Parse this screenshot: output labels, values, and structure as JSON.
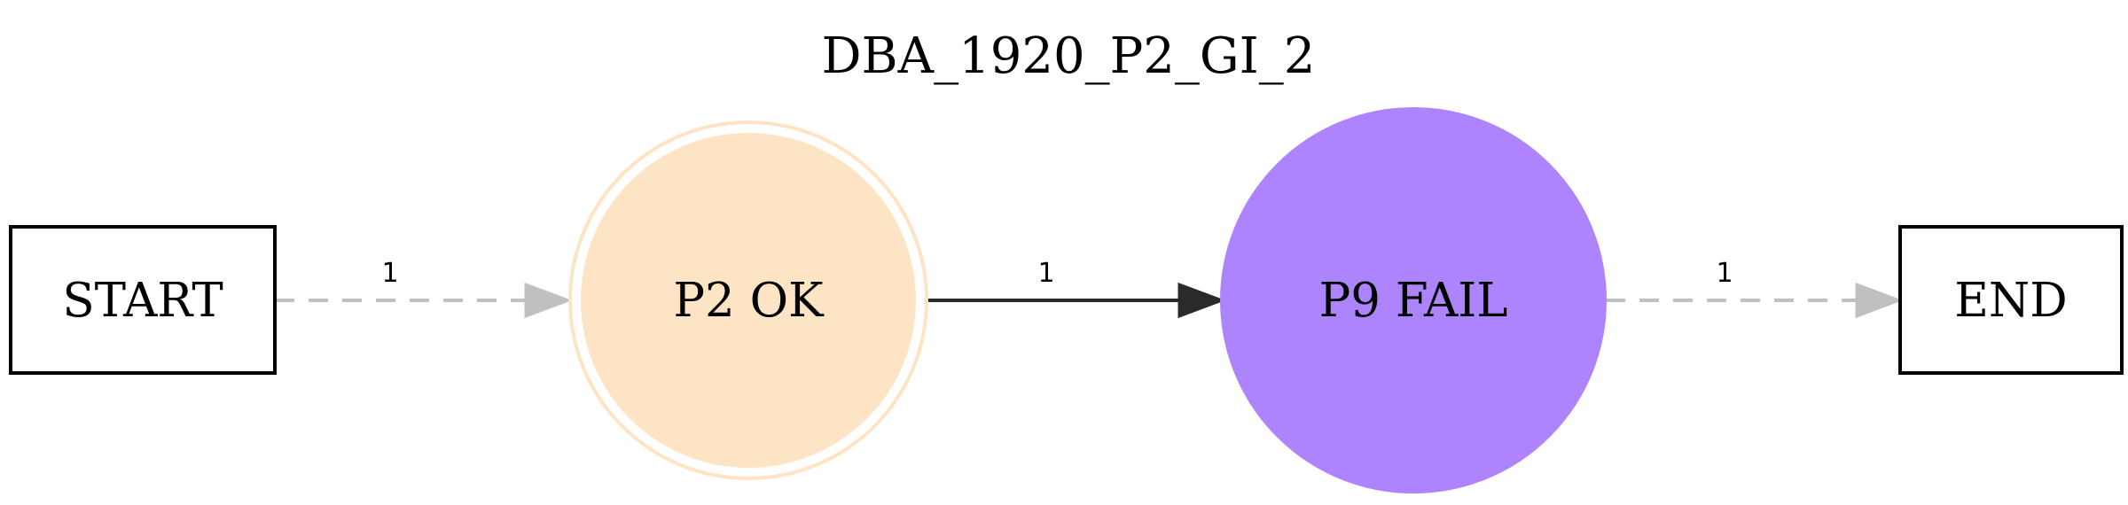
{
  "title": "DBA_1920_P2_GI_2",
  "nodes": {
    "start": {
      "label": "START",
      "shape": "box"
    },
    "p2": {
      "label": "P2 OK",
      "shape": "doublecircle",
      "fill": "#fde4c4",
      "stroke": "#fde4c4"
    },
    "p9": {
      "label": "P9 FAIL",
      "shape": "circle",
      "fill": "#ad83fe",
      "stroke": "#ad83fe"
    },
    "end": {
      "label": "END",
      "shape": "box"
    }
  },
  "edges": [
    {
      "from": "START",
      "to": "P2 OK",
      "label": "1",
      "style": "dashed",
      "color": "#c0c0c0"
    },
    {
      "from": "P2 OK",
      "to": "P9 FAIL",
      "label": "1",
      "style": "solid",
      "color": "#2a2a2a"
    },
    {
      "from": "P9 FAIL",
      "to": "END",
      "label": "1",
      "style": "dashed",
      "color": "#c0c0c0"
    }
  ]
}
